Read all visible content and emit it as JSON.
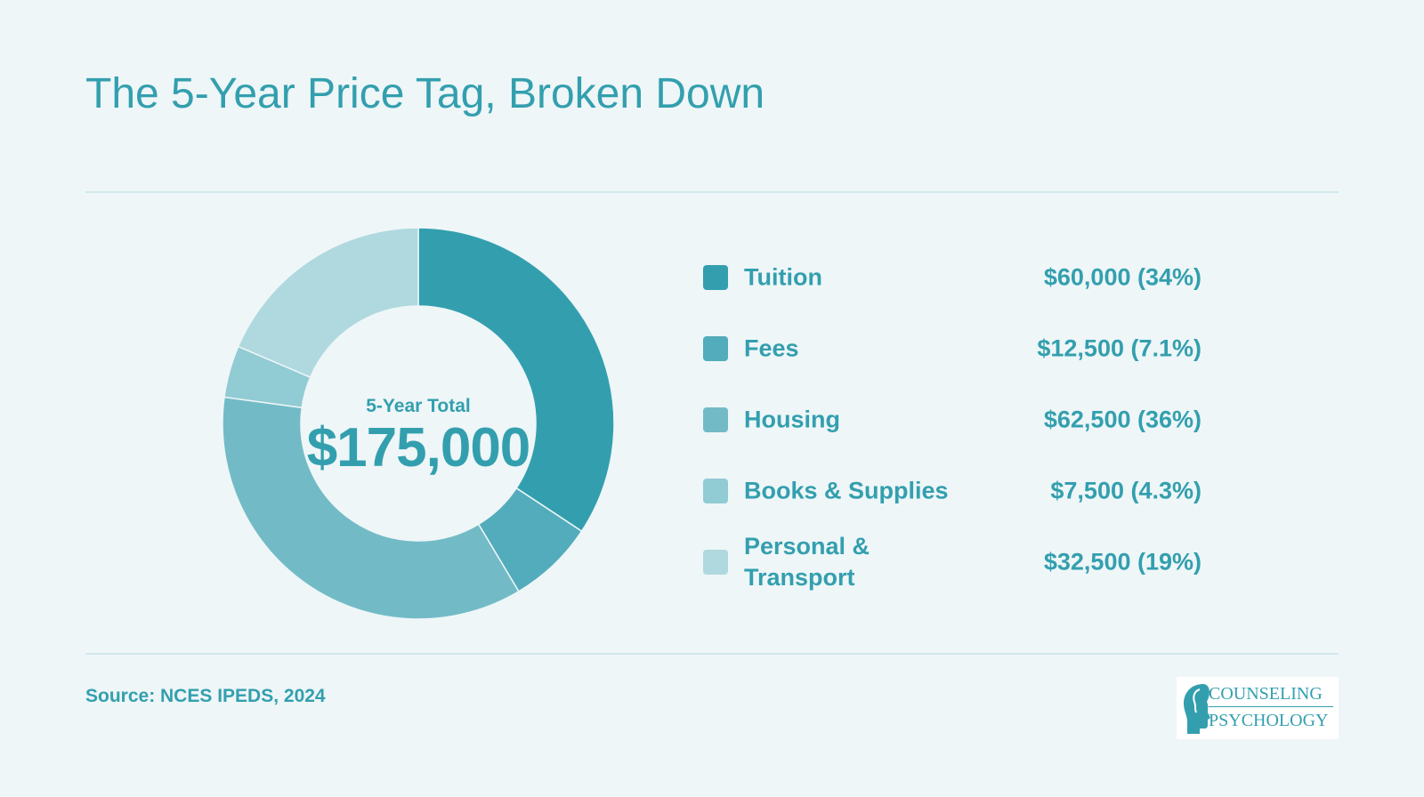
{
  "title": "The 5-Year Price Tag, Broken Down",
  "center": {
    "label": "5-Year Total",
    "value": "$175,000"
  },
  "source": "Source: NCES IPEDS, 2024",
  "logo": {
    "line1": "COUNSELING",
    "line2": "PSYCHOLOGY"
  },
  "colors": {
    "background": "#eef6f8",
    "accent": "#339fae"
  },
  "chart_data": {
    "type": "pie",
    "variant": "donut",
    "total": 175000,
    "categories": [
      "Tuition",
      "Fees",
      "Housing",
      "Books & Supplies",
      "Personal & Transport"
    ],
    "values": [
      60000,
      12500,
      62500,
      7500,
      32500
    ],
    "value_labels": [
      "$60,000 (34%)",
      "$12,500 (7.1%)",
      "$62,500 (36%)",
      "$7,500 (4.3%)",
      "$32,500 (19%)"
    ],
    "colors": [
      "#339fae",
      "#52acbb",
      "#72bbc6",
      "#91cbd3",
      "#afd9de"
    ],
    "legend_position": "right"
  }
}
